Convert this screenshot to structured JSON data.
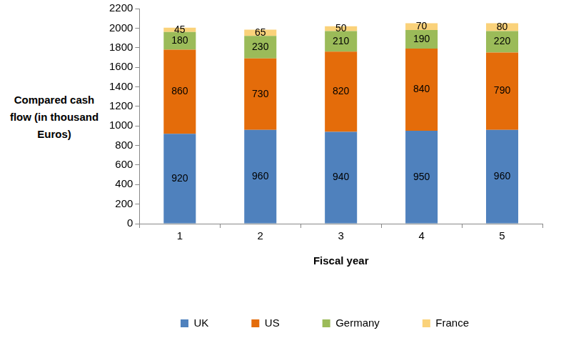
{
  "chart_data": {
    "type": "bar",
    "stacked": true,
    "y_label": "Compared cash flow (in thousand Euros)",
    "x_label": "Fiscal year",
    "categories": [
      "1",
      "2",
      "3",
      "4",
      "5"
    ],
    "series": [
      {
        "name": "UK",
        "color": "#4F81BD",
        "values": [
          920,
          960,
          940,
          950,
          960
        ]
      },
      {
        "name": "US",
        "color": "#E46C0A",
        "values": [
          860,
          730,
          820,
          840,
          790
        ]
      },
      {
        "name": "Germany",
        "color": "#9BBB59",
        "values": [
          180,
          230,
          210,
          190,
          220
        ]
      },
      {
        "name": "France",
        "color": "#FAD27A",
        "values": [
          45,
          65,
          50,
          70,
          80
        ]
      }
    ],
    "ylim": [
      0,
      2200
    ],
    "yticks": [
      0,
      200,
      400,
      600,
      800,
      1000,
      1200,
      1400,
      1600,
      1800,
      2000,
      2200
    ],
    "grid": false,
    "legend": "bottom",
    "data_labels": true
  }
}
